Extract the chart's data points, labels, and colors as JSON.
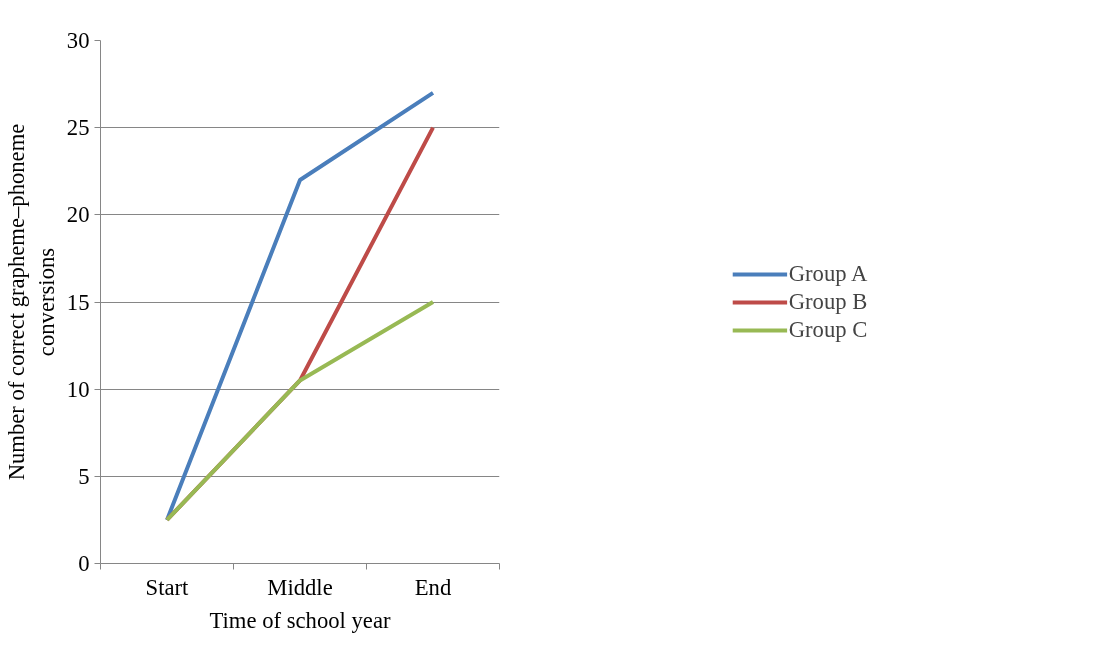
{
  "chart_data": {
    "type": "line",
    "xlabel": "Time of school year",
    "ylabel": "Number of correct grapheme–phoneme\nconversions",
    "categories": [
      "Start",
      "Middle",
      "End"
    ],
    "series": [
      {
        "name": "Group A",
        "color": "#4a7ebb",
        "values": [
          2.5,
          22,
          27
        ]
      },
      {
        "name": "Group B",
        "color": "#be4b48",
        "values": [
          2.5,
          10.5,
          25
        ]
      },
      {
        "name": "Group C",
        "color": "#98b954",
        "values": [
          2.5,
          10.5,
          15
        ]
      }
    ],
    "ylim": [
      0,
      30
    ],
    "yticks": [
      0,
      5,
      10,
      15,
      20,
      25,
      30
    ],
    "grid": "y",
    "legend": "right",
    "marker": "none",
    "line_style": "solid"
  }
}
